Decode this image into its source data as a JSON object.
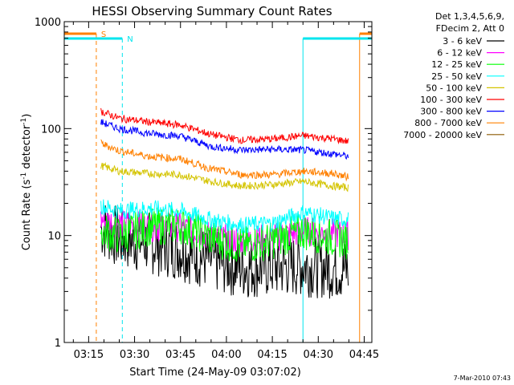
{
  "chart_data": {
    "type": "line",
    "title": "HESSI Observing Summary Count Rates",
    "xlabel": "Start Time (24-May-09 03:07:02)",
    "ylabel_main": "Count Rate (s",
    "ylabel_sup1": "-1",
    "ylabel_mid": " detector",
    "ylabel_sup2": "-1",
    "ylabel_end": ")",
    "y_scale": "log",
    "ylim": [
      1,
      1000
    ],
    "xlim": [
      "03:07:02",
      "04:47:30"
    ],
    "x_ticks": [
      "03:15",
      "03:30",
      "03:45",
      "04:00",
      "04:15",
      "04:30",
      "04:45"
    ],
    "y_ticks": [
      "1",
      "10",
      "100",
      "1000"
    ],
    "legend_header": [
      "Det 1,3,4,5,6,9,",
      "FDecim 2, Att 0"
    ],
    "legend_position": "top-right-outside",
    "footer": "7-Mar-2010 07:43",
    "flag_labels": {
      "saa": "S",
      "night": "N"
    },
    "flags": {
      "saa": [
        [
          "03:07:02",
          "03:17:30"
        ],
        [
          "04:43:30",
          "04:47:30"
        ]
      ],
      "night": [
        [
          "03:07:02",
          "03:26:00"
        ],
        [
          "04:25:00",
          "04:47:30"
        ]
      ]
    },
    "series": [
      {
        "name": "3 - 6 keV",
        "color": "#000000",
        "x": [
          "03:19",
          "03:25",
          "03:35",
          "03:45",
          "03:55",
          "04:05",
          "04:15",
          "04:25",
          "04:35",
          "04:40"
        ],
        "values": [
          12,
          9.5,
          8.5,
          7.5,
          5.8,
          5.1,
          5.1,
          5.3,
          5.0,
          4.8
        ]
      },
      {
        "name": "6 - 12 keV",
        "color": "#ff00ff",
        "x": [
          "03:19",
          "03:25",
          "03:35",
          "03:45",
          "03:55",
          "04:05",
          "04:15",
          "04:25",
          "04:35",
          "04:40"
        ],
        "values": [
          14,
          13,
          12,
          12,
          9.8,
          9.0,
          9.5,
          11,
          10.5,
          10
        ]
      },
      {
        "name": "12 - 25 keV",
        "color": "#00ff00",
        "x": [
          "03:19",
          "03:25",
          "03:35",
          "03:45",
          "03:55",
          "04:05",
          "04:15",
          "04:25",
          "04:35",
          "04:40"
        ],
        "values": [
          11,
          10,
          12,
          12.5,
          9.5,
          8.0,
          9.0,
          11,
          9.5,
          9.0
        ]
      },
      {
        "name": "25 - 50 keV",
        "color": "#00ffff",
        "x": [
          "03:19",
          "03:25",
          "03:35",
          "03:45",
          "03:55",
          "04:05",
          "04:15",
          "04:25",
          "04:35",
          "04:40"
        ],
        "values": [
          19,
          17,
          18,
          17,
          14,
          12.5,
          13,
          16.5,
          14.5,
          14
        ]
      },
      {
        "name": "50 - 100 keV",
        "color": "#d4c400",
        "x": [
          "03:19",
          "03:25",
          "03:35",
          "03:45",
          "03:55",
          "04:05",
          "04:15",
          "04:25",
          "04:35",
          "04:40"
        ],
        "values": [
          45,
          40,
          38,
          37,
          32,
          29,
          30,
          32,
          29,
          28
        ]
      },
      {
        "name": "100 - 300 keV",
        "color": "#ff0000",
        "x": [
          "03:19",
          "03:25",
          "03:35",
          "03:45",
          "03:55",
          "04:05",
          "04:15",
          "04:25",
          "04:35",
          "04:40"
        ],
        "values": [
          145,
          125,
          115,
          108,
          88,
          78,
          80,
          86,
          80,
          76
        ]
      },
      {
        "name": "300 - 800 keV",
        "color": "#0000ff",
        "x": [
          "03:19",
          "03:25",
          "03:35",
          "03:45",
          "03:55",
          "04:05",
          "04:15",
          "04:25",
          "04:35",
          "04:40"
        ],
        "values": [
          115,
          100,
          90,
          85,
          68,
          63,
          64,
          63,
          58,
          55
        ]
      },
      {
        "name": "800 - 7000 keV",
        "color": "#ff8000",
        "x": [
          "03:19",
          "03:25",
          "03:35",
          "03:45",
          "03:55",
          "04:05",
          "04:15",
          "04:25",
          "04:35",
          "04:40"
        ],
        "values": [
          73,
          62,
          55,
          52,
          42,
          37,
          37,
          40,
          38,
          35
        ]
      },
      {
        "name": "7000 - 20000 keV",
        "color": "#8b5a00",
        "x": [],
        "values": []
      }
    ]
  }
}
